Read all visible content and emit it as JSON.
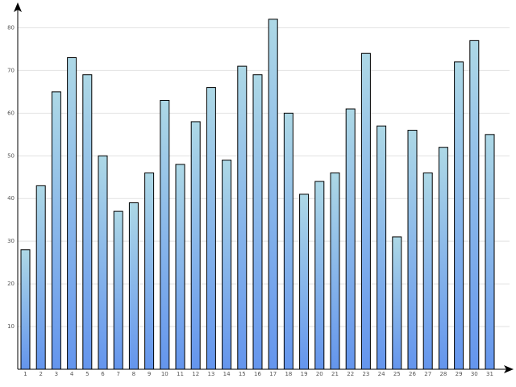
{
  "chart_data": {
    "type": "bar",
    "title": "",
    "xlabel": "",
    "ylabel": "",
    "categories": [
      "1",
      "2",
      "3",
      "4",
      "5",
      "6",
      "7",
      "8",
      "9",
      "10",
      "11",
      "12",
      "13",
      "14",
      "15",
      "16",
      "17",
      "18",
      "19",
      "20",
      "21",
      "22",
      "23",
      "24",
      "25",
      "26",
      "27",
      "28",
      "29",
      "30",
      "31"
    ],
    "values": [
      28,
      43,
      65,
      73,
      69,
      50,
      37,
      39,
      46,
      63,
      48,
      58,
      66,
      49,
      71,
      69,
      82,
      60,
      41,
      44,
      46,
      61,
      74,
      57,
      31,
      56,
      46,
      52,
      72,
      77,
      55
    ],
    "ylim": [
      0,
      85
    ],
    "yticks": [
      10,
      20,
      30,
      40,
      50,
      60,
      70,
      80
    ],
    "ytick_labels": [
      "10",
      "20",
      "30",
      "40",
      "50",
      "60",
      "70",
      "80"
    ],
    "grid": true,
    "legend": "none",
    "colors": {
      "bar_top": "#add8e6",
      "bar_bottom": "#6495ed",
      "bar_stroke": "#000000",
      "grid": "#e2e2e2",
      "axis": "#000000",
      "tick_text": "#555555"
    }
  }
}
